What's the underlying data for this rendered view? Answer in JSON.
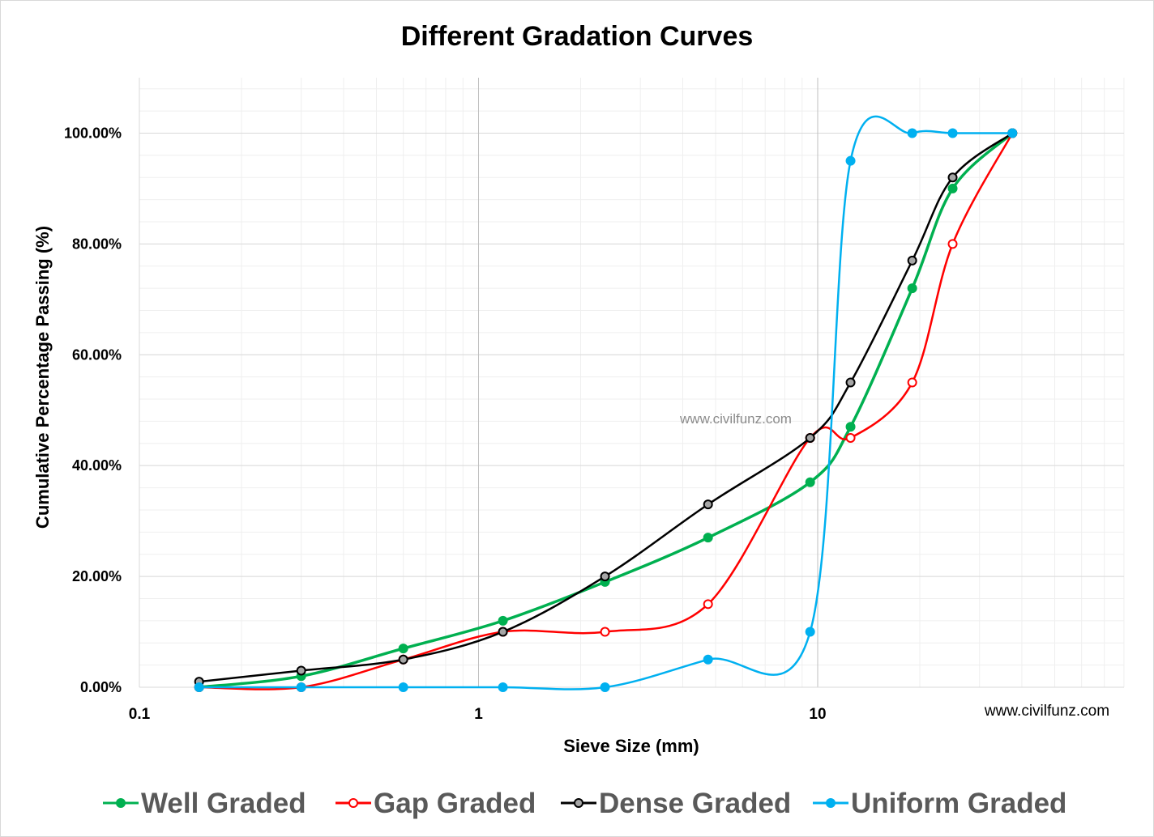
{
  "chart_data": {
    "type": "line",
    "title": "Different Gradation Curves",
    "xlabel": "Sieve  Size (mm)",
    "ylabel": "Cumulative Percentage Passing  (%)",
    "x_scale": "log",
    "xlim": [
      0.1,
      100
    ],
    "ylim": [
      0,
      1.1
    ],
    "x_tick_labels": [
      "0.1",
      "1",
      "10"
    ],
    "y_tick_labels": [
      "0.00%",
      "20.00%",
      "40.00%",
      "60.00%",
      "80.00%",
      "100.00%"
    ],
    "grid": true,
    "legend_position": "bottom",
    "series": [
      {
        "name": "Well Graded",
        "color": "#00b050",
        "marker_fill": "#00b050",
        "x": [
          0.15,
          0.3,
          0.6,
          1.18,
          2.36,
          4.75,
          9.5,
          12.5,
          19,
          25,
          37.5
        ],
        "y": [
          0.0,
          0.02,
          0.07,
          0.12,
          0.19,
          0.27,
          0.37,
          0.47,
          0.72,
          0.9,
          1.0
        ]
      },
      {
        "name": "Gap Graded",
        "color": "#ff0000",
        "marker_fill": "#ffffff",
        "x": [
          0.15,
          0.3,
          0.6,
          1.18,
          2.36,
          4.75,
          9.5,
          12.5,
          19,
          25,
          37.5
        ],
        "y": [
          0.0,
          0.0,
          0.05,
          0.1,
          0.1,
          0.15,
          0.45,
          0.45,
          0.55,
          0.8,
          1.0
        ]
      },
      {
        "name": "Dense Graded",
        "color": "#000000",
        "marker_fill": "#a6a6a6",
        "x": [
          0.15,
          0.3,
          0.6,
          1.18,
          2.36,
          4.75,
          9.5,
          12.5,
          19,
          25,
          37.5
        ],
        "y": [
          0.01,
          0.03,
          0.05,
          0.1,
          0.2,
          0.33,
          0.45,
          0.55,
          0.77,
          0.92,
          1.0
        ]
      },
      {
        "name": "Uniform Graded",
        "color": "#00b0f0",
        "marker_fill": "#00b0f0",
        "x": [
          0.15,
          0.3,
          0.6,
          1.18,
          2.36,
          4.75,
          9.5,
          12.5,
          19,
          25,
          37.5
        ],
        "y": [
          0.0,
          0.0,
          0.0,
          0.0,
          0.0,
          0.05,
          0.1,
          0.95,
          1.0,
          1.0,
          1.0
        ]
      }
    ],
    "annotations": [
      "www.civilfunz.com",
      "www.civilfunz.com"
    ]
  }
}
